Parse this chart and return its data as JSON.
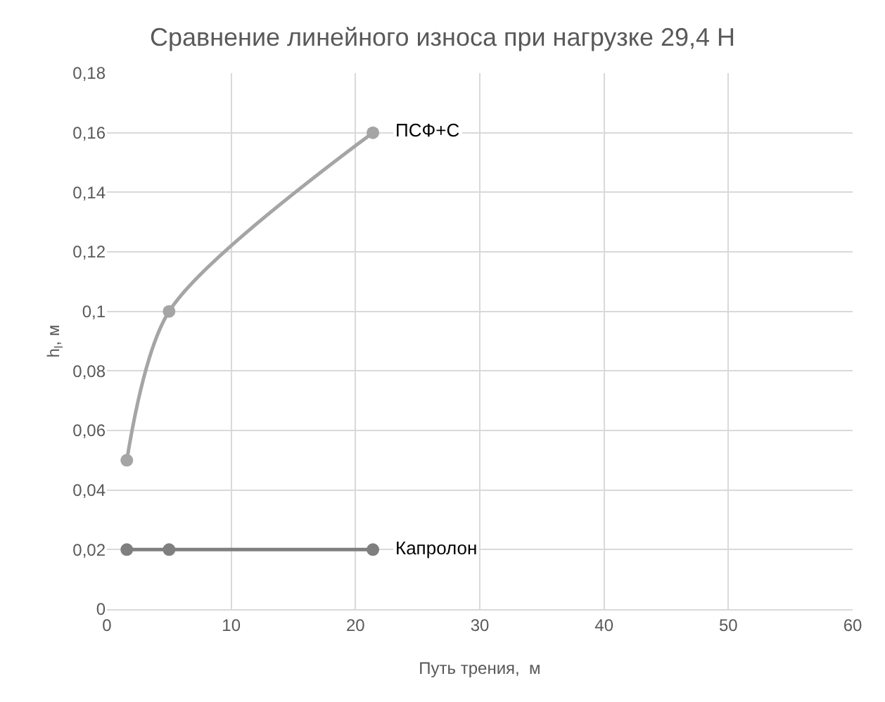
{
  "chart_data": {
    "type": "line",
    "title": "Сравнение линейного износа при нагрузке 29,4 Н",
    "xlabel": "Путь трения,  м",
    "ylabel": "h$_{l}$, м",
    "series": [
      {
        "name": "ПСФ+С",
        "color": "#a5a5a5",
        "x": [
          1.6,
          5.0,
          21.4
        ],
        "values": [
          0.05,
          0.1,
          0.16
        ]
      },
      {
        "name": "Капролон",
        "color": "#7f7f7f",
        "x": [
          1.6,
          5.0,
          21.4
        ],
        "values": [
          0.02,
          0.02,
          0.02
        ]
      }
    ],
    "xlim": [
      0,
      60
    ],
    "xticks": [
      0,
      10,
      20,
      30,
      40,
      50,
      60
    ],
    "ylim": [
      0,
      0.18
    ],
    "yticks": [
      0,
      {
        "value": 0.02,
        "label": "0,02"
      },
      {
        "value": 0.04,
        "label": "0,04"
      },
      {
        "value": 0.06,
        "label": "0,06"
      },
      {
        "value": 0.08,
        "label": "0,08"
      },
      {
        "value": 0.1,
        "label": "0,1"
      },
      {
        "value": 0.12,
        "label": "0,12"
      },
      {
        "value": 0.14,
        "label": "0,14"
      },
      {
        "value": 0.16,
        "label": "0,16"
      },
      {
        "value": 0.18,
        "label": "0,18"
      }
    ],
    "grid": true,
    "legend": false,
    "marker": "circle",
    "line_style": "solid"
  }
}
